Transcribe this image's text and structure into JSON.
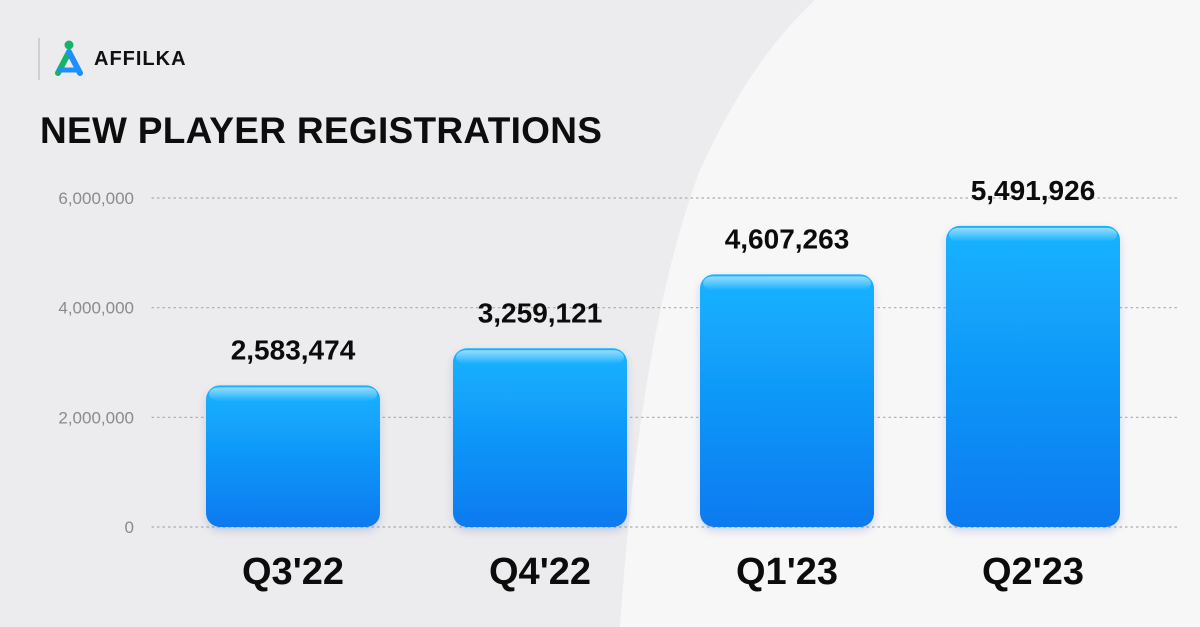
{
  "brand": {
    "name": "AFFILKA",
    "logo_icon": "affilka-logo-icon"
  },
  "colors": {
    "bar_top": "#14b3ff",
    "bar_bottom": "#0d7af0",
    "grid": "#a9a9ae"
  },
  "chart_data": {
    "type": "bar",
    "title": "NEW PLAYER REGISTRATIONS",
    "xlabel": "",
    "ylabel": "",
    "categories": [
      "Q3'22",
      "Q4'22",
      "Q1'23",
      "Q2'23"
    ],
    "values": [
      2583474,
      3259121,
      4607263,
      5491926
    ],
    "value_labels": [
      "2,583,474",
      "3,259,121",
      "4,607,263",
      "5,491,926"
    ],
    "ylim": [
      0,
      6000000
    ],
    "yticks": [
      0,
      2000000,
      4000000,
      6000000
    ],
    "ytick_labels": [
      "0",
      "2,000,000",
      "4,000,000",
      "6,000,000"
    ],
    "grid": true,
    "legend": "none"
  }
}
